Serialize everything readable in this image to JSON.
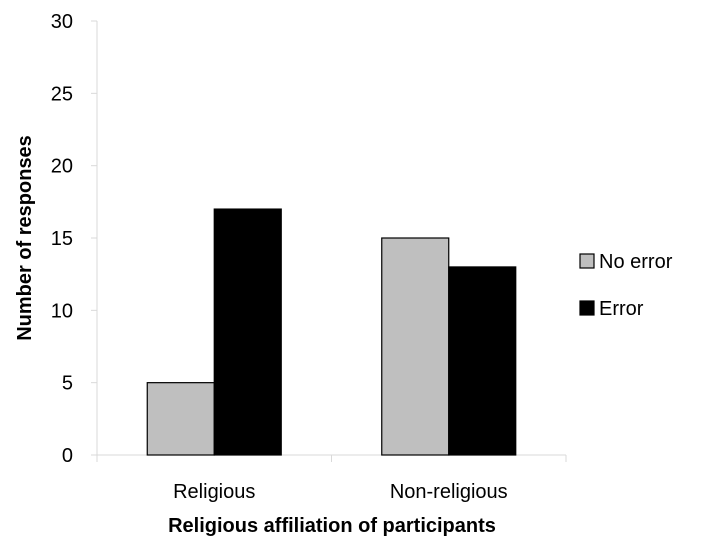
{
  "chart_data": {
    "type": "bar",
    "title": "",
    "xlabel": "Religious affiliation of participants",
    "ylabel": "Number of responses",
    "categories": [
      "Religious",
      "Non-religious"
    ],
    "series": [
      {
        "name": "No error",
        "values": [
          5,
          15
        ],
        "color": "#bfbfbf"
      },
      {
        "name": "Error",
        "values": [
          17,
          13
        ],
        "color": "#000000"
      }
    ],
    "ylim": [
      0,
      30
    ],
    "yticks": [
      "0",
      "5",
      "10",
      "15",
      "20",
      "25",
      "30"
    ],
    "grid": false,
    "legend_position": "right"
  }
}
